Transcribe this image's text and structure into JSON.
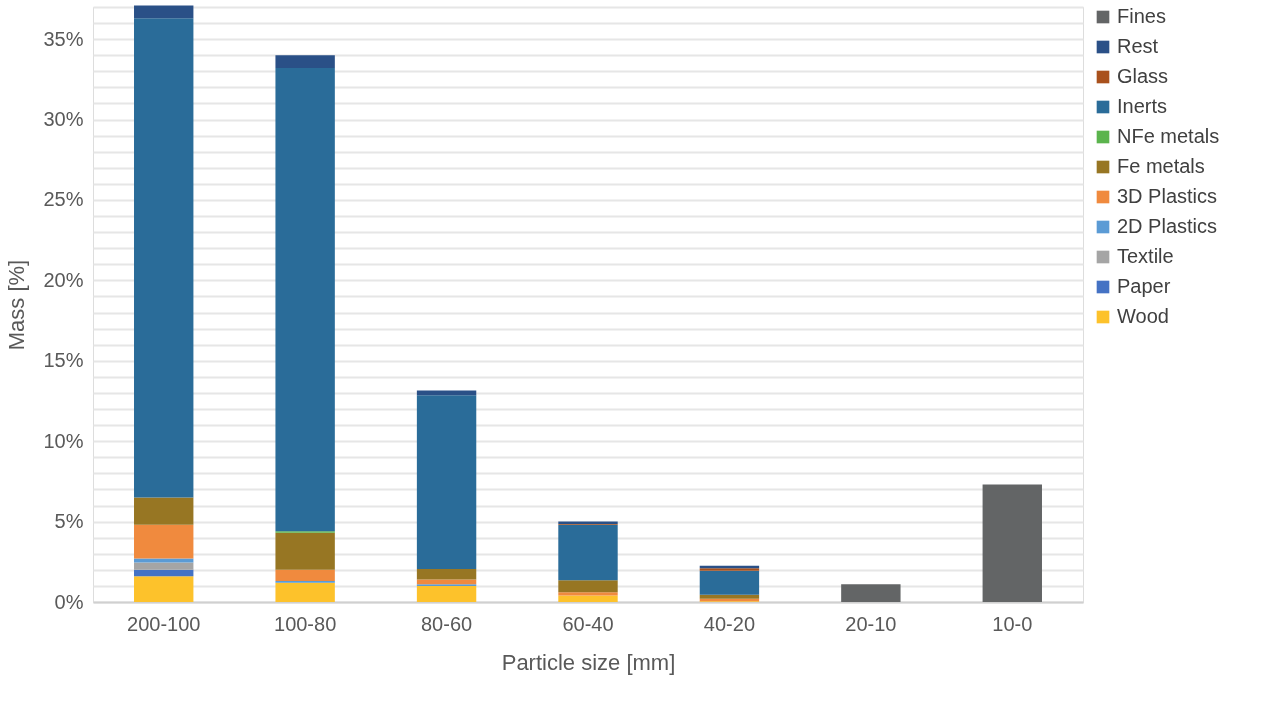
{
  "chart_data": {
    "type": "bar",
    "stacked": true,
    "xlabel": "Particle size [mm]",
    "ylabel": "Mass [%]",
    "categories": [
      "200-100",
      "100-80",
      "80-60",
      "60-40",
      "40-20",
      "20-10",
      "10-0"
    ],
    "series": [
      {
        "name": "Wood",
        "color": "#fdc22b",
        "values": [
          1.6,
          1.2,
          1.0,
          0.4,
          0.05,
          null,
          null
        ]
      },
      {
        "name": "Paper",
        "color": "#4472c4",
        "values": [
          0.4,
          null,
          null,
          null,
          null,
          null,
          null
        ]
      },
      {
        "name": "Textile",
        "color": "#a5a5a5",
        "values": [
          0.45,
          null,
          null,
          null,
          null,
          null,
          null
        ]
      },
      {
        "name": "2D Plastics",
        "color": "#5b9bd5",
        "values": [
          0.25,
          0.1,
          0.1,
          null,
          null,
          null,
          null
        ]
      },
      {
        "name": "3D Plastics",
        "color": "#f08a3e",
        "values": [
          2.1,
          0.7,
          0.3,
          0.2,
          0.15,
          null,
          null
        ]
      },
      {
        "name": "Fe metals",
        "color": "#977623",
        "values": [
          1.7,
          2.3,
          0.65,
          0.75,
          0.25,
          null,
          null
        ]
      },
      {
        "name": "NFe metals",
        "color": "#5bb44d",
        "values": [
          null,
          0.1,
          null,
          null,
          null,
          null,
          null
        ]
      },
      {
        "name": "Inerts",
        "color": "#2a6c99",
        "values": [
          29.8,
          28.8,
          10.8,
          3.45,
          1.5,
          null,
          null
        ]
      },
      {
        "name": "Glass",
        "color": "#a9511c",
        "values": [
          null,
          null,
          null,
          0.05,
          0.15,
          null,
          null
        ]
      },
      {
        "name": "Rest",
        "color": "#2a5087",
        "values": [
          0.8,
          0.8,
          0.3,
          0.15,
          0.15,
          null,
          null
        ]
      },
      {
        "name": "Fines",
        "color": "#636566",
        "values": [
          null,
          null,
          null,
          null,
          null,
          1.1,
          7.3
        ]
      }
    ],
    "ylim": [
      0,
      37
    ],
    "yticks": [
      {
        "value": 0,
        "label": "0%"
      },
      {
        "value": 1,
        "label": null
      },
      {
        "value": 2,
        "label": null
      },
      {
        "value": 3,
        "label": null
      },
      {
        "value": 4,
        "label": null
      },
      {
        "value": 5,
        "label": "5%"
      },
      {
        "value": 6,
        "label": null
      },
      {
        "value": 7,
        "label": null
      },
      {
        "value": 8,
        "label": null
      },
      {
        "value": 9,
        "label": null
      },
      {
        "value": 10,
        "label": "10%"
      },
      {
        "value": 11,
        "label": null
      },
      {
        "value": 12,
        "label": null
      },
      {
        "value": 13,
        "label": null
      },
      {
        "value": 14,
        "label": null
      },
      {
        "value": 15,
        "label": "15%"
      },
      {
        "value": 16,
        "label": null
      },
      {
        "value": 17,
        "label": null
      },
      {
        "value": 18,
        "label": null
      },
      {
        "value": 19,
        "label": null
      },
      {
        "value": 20,
        "label": "20%"
      },
      {
        "value": 21,
        "label": null
      },
      {
        "value": 22,
        "label": null
      },
      {
        "value": 23,
        "label": null
      },
      {
        "value": 24,
        "label": null
      },
      {
        "value": 25,
        "label": "25%"
      },
      {
        "value": 26,
        "label": null
      },
      {
        "value": 27,
        "label": null
      },
      {
        "value": 28,
        "label": null
      },
      {
        "value": 29,
        "label": null
      },
      {
        "value": 30,
        "label": "30%"
      },
      {
        "value": 31,
        "label": null
      },
      {
        "value": 32,
        "label": null
      },
      {
        "value": 33,
        "label": null
      },
      {
        "value": 34,
        "label": null
      },
      {
        "value": 35,
        "label": "35%"
      },
      {
        "value": 36,
        "label": null
      },
      {
        "value": 37,
        "label": null
      }
    ],
    "grid": "y",
    "legend": "right"
  }
}
